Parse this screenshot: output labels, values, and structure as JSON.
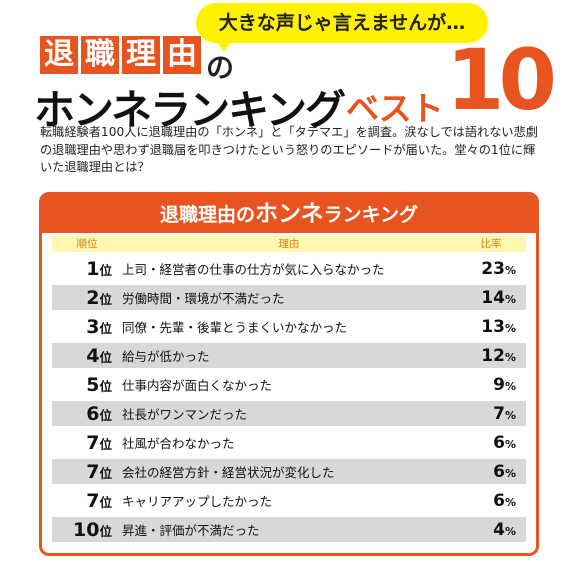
{
  "header": {
    "bubble": "大きな声じゃ言えませんが…",
    "title_boxes": [
      "退",
      "職",
      "理",
      "由"
    ],
    "title_no": "の",
    "title_main": "ホンネランキング",
    "title_best": "ベスト",
    "title_ten": "10"
  },
  "intro": "転職経験者100人に退職理由の「ホンネ」と「タテマエ」を調査。涙なしでは語れない悲劇の退職理由や思わず退職届を叩きつけたという怒りのエピソードが届いた。堂々の1位に輝いた退職理由とは？",
  "panel": {
    "title_a": "退職理由の",
    "title_b": "ホンネ",
    "title_c": "ランキング",
    "col_rank": "順位",
    "col_reason": "理由",
    "col_rate": "比率",
    "rank_unit": "位",
    "rate_unit": "%",
    "rows": [
      {
        "rank": "1",
        "reason": "上司・経営者の仕事の仕方が気に入らなかった",
        "rate": "23"
      },
      {
        "rank": "2",
        "reason": "労働時間・環境が不満だった",
        "rate": "14"
      },
      {
        "rank": "3",
        "reason": "同僚・先輩・後輩とうまくいかなかった",
        "rate": "13"
      },
      {
        "rank": "4",
        "reason": "給与が低かった",
        "rate": "12"
      },
      {
        "rank": "5",
        "reason": "仕事内容が面白くなかった",
        "rate": "9"
      },
      {
        "rank": "6",
        "reason": "社長がワンマンだった",
        "rate": "7"
      },
      {
        "rank": "7",
        "reason": "社風が合わなかった",
        "rate": "6"
      },
      {
        "rank": "7",
        "reason": "会社の経営方針・経営状況が変化した",
        "rate": "6"
      },
      {
        "rank": "7",
        "reason": "キャリアアップしたかった",
        "rate": "6"
      },
      {
        "rank": "10",
        "reason": "昇進・評価が不満だった",
        "rate": "4"
      }
    ]
  },
  "colors": {
    "accent": "#e8541f",
    "bubble": "#fff200",
    "header_row": "#fff7b0",
    "stripe": "#d8d8d8"
  }
}
